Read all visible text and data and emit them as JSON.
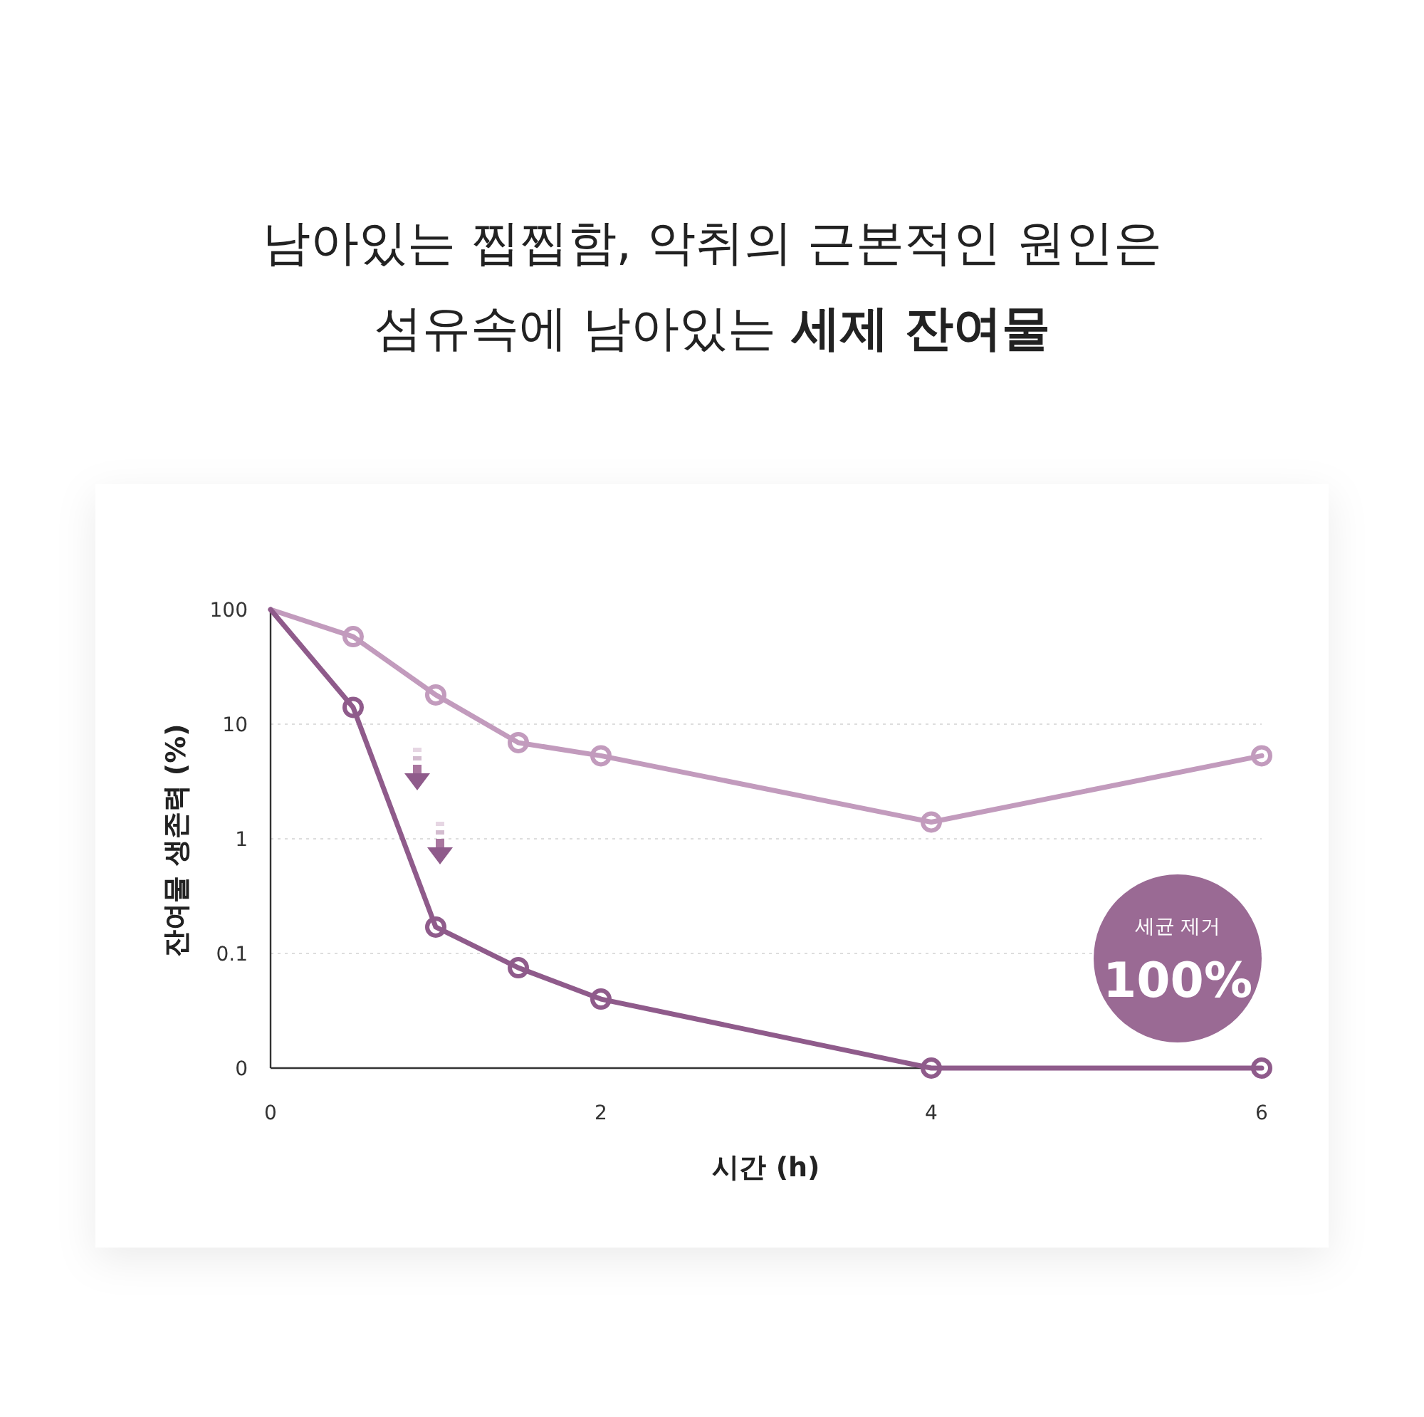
{
  "chart_data": {
    "type": "line",
    "title": "남아있는 찝찝함, 악취의 근본적인 원인은",
    "subtitle": "섬유속에 남아있는 **세제 잔여물**",
    "xlabel": "시간 (h)",
    "ylabel": "잔여물 생존력 (%)",
    "x": [
      0,
      0.5,
      1,
      1.5,
      2,
      4,
      6
    ],
    "series": [
      {
        "color": "#c29bbd",
        "values": [
          100,
          58,
          18,
          6.9,
          5.3,
          1.4,
          5.3
        ]
      },
      {
        "color": "#8f5b8b",
        "values": [
          100,
          14,
          0.17,
          0.075,
          0.04,
          0.01,
          0.01
        ]
      }
    ],
    "xlim": [
      0,
      6
    ],
    "xticks": [
      0,
      2,
      4,
      6
    ],
    "ylim": [
      0.01,
      100
    ],
    "yticks": [
      {
        "value": 0.01,
        "label": "0"
      },
      0.1,
      1,
      10,
      100
    ],
    "log": "y",
    "grid": "y",
    "marker": "circle",
    "line_style": "solid",
    "annotations": [
      "세균 제거",
      "100%"
    ]
  }
}
